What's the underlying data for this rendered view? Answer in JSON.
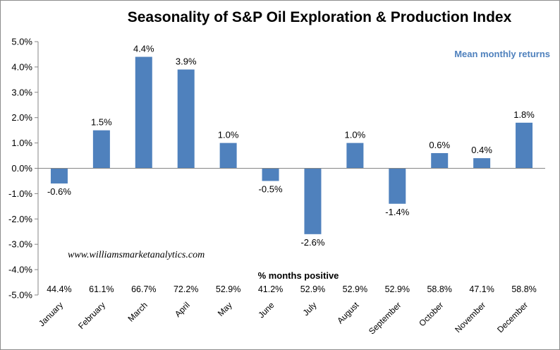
{
  "chart_data": {
    "type": "bar",
    "title": "Seasonality of S&P Oil Exploration & Production Index",
    "legend_label": "Mean monthly returns",
    "legend_position": "top-right",
    "watermark": "www.williamsmarketanalytics.com",
    "categories": [
      "January",
      "February",
      "March",
      "April",
      "May",
      "June",
      "July",
      "August",
      "September",
      "October",
      "November",
      "December"
    ],
    "series": [
      {
        "values": [
          -0.6,
          1.5,
          4.4,
          3.9,
          1.0,
          -0.5,
          -2.6,
          1.0,
          -1.4,
          0.6,
          0.4,
          1.8
        ],
        "labels": [
          "-0.6%",
          "1.5%",
          "4.4%",
          "3.9%",
          "1.0%",
          "-0.5%",
          "-2.6%",
          "1.0%",
          "-1.4%",
          "0.6%",
          "0.4%",
          "1.8%"
        ],
        "color": "#4f81bd"
      }
    ],
    "ylim": [
      -5.0,
      5.0
    ],
    "yticks": [
      5.0,
      4.0,
      3.0,
      2.0,
      1.0,
      0.0,
      -1.0,
      -2.0,
      -3.0,
      -4.0,
      -5.0
    ],
    "ytick_labels": [
      "5.0%",
      "4.0%",
      "3.0%",
      "2.0%",
      "1.0%",
      "0.0%",
      "-1.0%",
      "-2.0%",
      "-3.0%",
      "-4.0%",
      "-5.0%"
    ],
    "grid": false,
    "months_positive": {
      "header": "% months positive",
      "values": [
        "44.4%",
        "61.1%",
        "66.7%",
        "72.2%",
        "52.9%",
        "41.2%",
        "52.9%",
        "52.9%",
        "52.9%",
        "58.8%",
        "47.1%",
        "58.8%"
      ]
    }
  }
}
